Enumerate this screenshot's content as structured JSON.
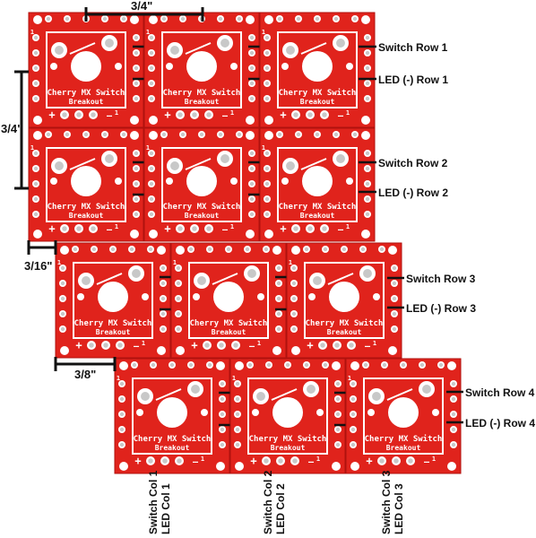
{
  "colors": {
    "board_red": "#e0231c",
    "board_edge": "#b0120e",
    "silk": "#ffffff",
    "pad": "#c8c8c8",
    "ink": "#111111"
  },
  "board": {
    "title_line1": "Cherry MX Switch",
    "title_line2": "Breakout",
    "pin_label": "1",
    "plus": "+",
    "minus": "—"
  },
  "dimensions": {
    "top": "3/4\"",
    "left": "3/4\"",
    "offset_small": "3/16\"",
    "offset_large": "3/8\""
  },
  "row_labels": {
    "switch_row_1": "Switch Row 1",
    "led_row_1": "LED (-) Row 1",
    "switch_row_2": "Switch Row 2",
    "led_row_2": "LED (-) Row 2",
    "switch_row_3": "Switch Row 3",
    "led_row_3": "LED (-) Row 3",
    "switch_row_4": "Switch Row 4",
    "led_row_4": "LED (-) Row 4"
  },
  "col_labels": {
    "switch_col_1": "Switch Col 1",
    "led_col_1": "LED Col 1",
    "switch_col_2": "Switch Col 2",
    "led_col_2": "LED Col 2",
    "switch_col_3": "Switch Col 3",
    "led_col_3": "LED Col 3"
  }
}
